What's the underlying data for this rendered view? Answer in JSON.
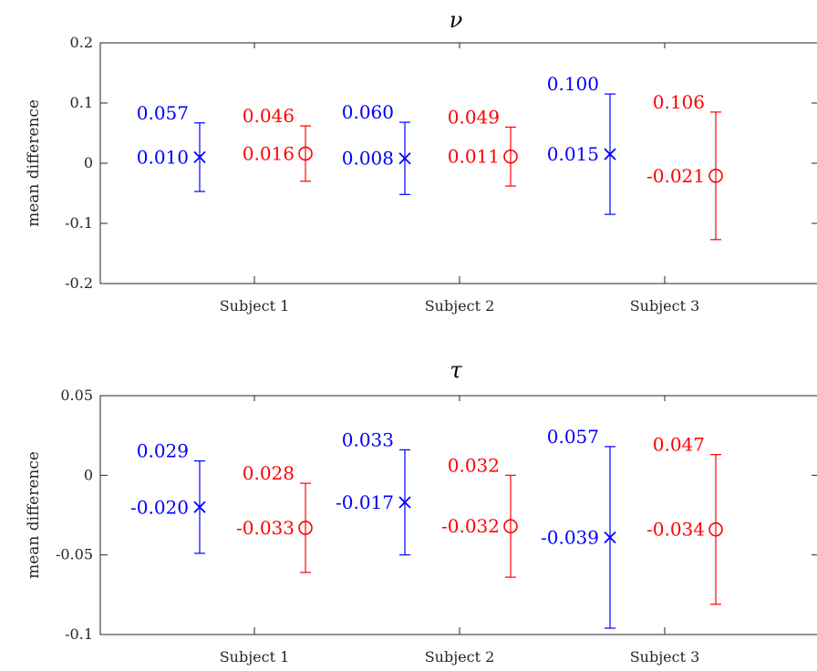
{
  "chart_data": [
    {
      "type": "scatter",
      "title": "ν",
      "ylabel": "mean difference",
      "ylim": [
        -0.2,
        0.2
      ],
      "yticks": [
        0.2,
        0.1,
        0,
        -0.1,
        -0.2
      ],
      "ytick_labels": [
        "0.2",
        "0.1",
        "0",
        "-0.1",
        "-0.2"
      ],
      "categories": [
        "Subject 1",
        "Subject 2",
        "Subject 3"
      ],
      "grid": false,
      "series": [
        {
          "marker": "x",
          "color": "#0000ff",
          "values": [
            0.01,
            0.008,
            0.015
          ],
          "upper": [
            0.067,
            0.068,
            0.115
          ],
          "lower": [
            -0.047,
            -0.052,
            -0.085
          ],
          "value_labels": [
            "0.010",
            "0.008",
            "0.015"
          ],
          "upper_labels": [
            "0.057",
            "0.060",
            "0.100"
          ]
        },
        {
          "marker": "o",
          "color": "#ff0000",
          "values": [
            0.016,
            0.011,
            -0.021
          ],
          "upper": [
            0.062,
            0.06,
            0.085
          ],
          "lower": [
            -0.03,
            -0.038,
            -0.127
          ],
          "value_labels": [
            "0.016",
            "0.011",
            "-0.021"
          ],
          "upper_labels": [
            "0.046",
            "0.049",
            "0.106"
          ]
        }
      ]
    },
    {
      "type": "scatter",
      "title": "τ",
      "ylabel": "mean difference",
      "ylim": [
        -0.1,
        0.05
      ],
      "yticks": [
        0.05,
        0,
        -0.05,
        -0.1
      ],
      "ytick_labels": [
        "0.05",
        "0",
        "-0.05",
        "-0.1"
      ],
      "categories": [
        "Subject 1",
        "Subject 2",
        "Subject 3"
      ],
      "grid": false,
      "series": [
        {
          "marker": "x",
          "color": "#0000ff",
          "values": [
            -0.02,
            -0.017,
            -0.039
          ],
          "upper": [
            0.009,
            0.016,
            0.018
          ],
          "lower": [
            -0.049,
            -0.05,
            -0.096
          ],
          "value_labels": [
            "-0.020",
            "-0.017",
            "-0.039"
          ],
          "upper_labels": [
            "0.029",
            "0.033",
            "0.057"
          ]
        },
        {
          "marker": "o",
          "color": "#ff0000",
          "values": [
            -0.033,
            -0.032,
            -0.034
          ],
          "upper": [
            -0.005,
            0.0,
            0.013
          ],
          "lower": [
            -0.061,
            -0.064,
            -0.081
          ],
          "value_labels": [
            "-0.033",
            "-0.032",
            "-0.034"
          ],
          "upper_labels": [
            "0.028",
            "0.032",
            "0.047"
          ]
        }
      ]
    }
  ]
}
